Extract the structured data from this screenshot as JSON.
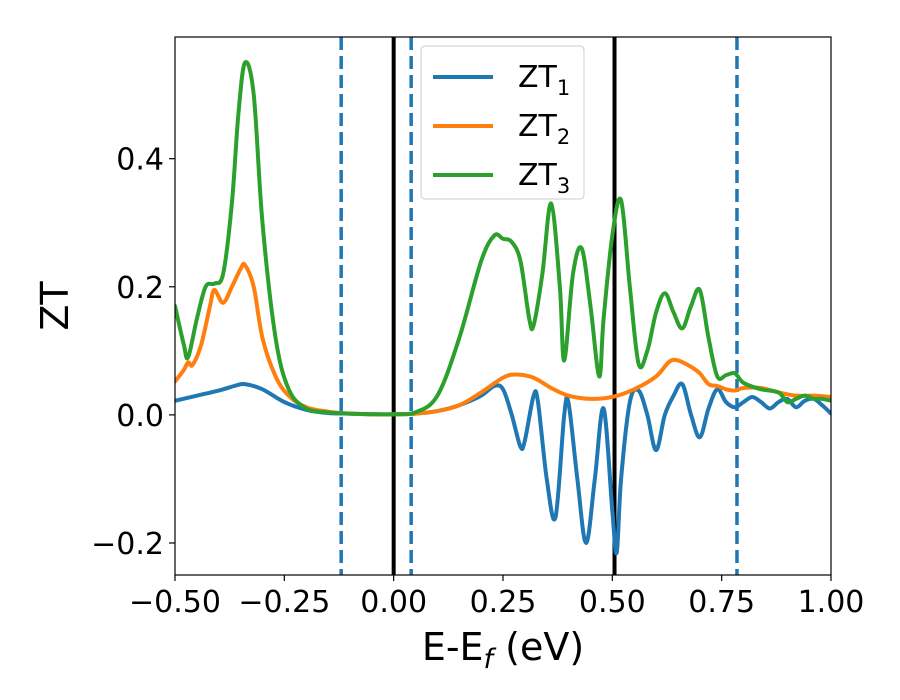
{
  "chart_data": {
    "type": "line",
    "xlabel": "E-E",
    "xlabel_sub": "f",
    "xlabel_unit": " (eV)",
    "ylabel": "ZT",
    "xlim": [
      -0.5,
      1.0
    ],
    "ylim": [
      -0.25,
      0.59
    ],
    "x_ticks": [
      -0.5,
      -0.25,
      0.0,
      0.25,
      0.5,
      0.75,
      1.0
    ],
    "x_tick_labels": [
      "−0.50",
      "−0.25",
      "0.00",
      "0.25",
      "0.50",
      "0.75",
      "1.00"
    ],
    "y_ticks": [
      -0.2,
      0.0,
      0.2,
      0.4
    ],
    "y_tick_labels": [
      "−0.2",
      "0.0",
      "0.2",
      "0.4"
    ],
    "grid": false,
    "legend_position": "top-center",
    "vertical_lines": [
      {
        "x": 0.0,
        "style": "solid",
        "color": "#000000"
      },
      {
        "x": 0.505,
        "style": "solid",
        "color": "#000000"
      },
      {
        "x": -0.12,
        "style": "dashed",
        "color": "#1f77b4"
      },
      {
        "x": 0.04,
        "style": "dashed",
        "color": "#1f77b4"
      },
      {
        "x": 0.785,
        "style": "dashed",
        "color": "#1f77b4"
      }
    ],
    "series": [
      {
        "name": "ZT",
        "name_sub": "1",
        "color": "#1f77b4",
        "x": [
          -0.5,
          -0.45,
          -0.4,
          -0.36,
          -0.34,
          -0.3,
          -0.25,
          -0.2,
          -0.15,
          -0.1,
          -0.05,
          0,
          0.05,
          0.1,
          0.15,
          0.2,
          0.23,
          0.25,
          0.27,
          0.29,
          0.3,
          0.32,
          0.33,
          0.35,
          0.37,
          0.39,
          0.4,
          0.42,
          0.44,
          0.46,
          0.48,
          0.5,
          0.51,
          0.52,
          0.54,
          0.56,
          0.58,
          0.6,
          0.62,
          0.64,
          0.66,
          0.68,
          0.7,
          0.72,
          0.74,
          0.76,
          0.78,
          0.8,
          0.82,
          0.84,
          0.86,
          0.88,
          0.9,
          0.92,
          0.94,
          0.96,
          0.98,
          1.0
        ],
        "values": [
          0.022,
          0.03,
          0.038,
          0.046,
          0.048,
          0.04,
          0.02,
          0.008,
          0.003,
          0.002,
          0.001,
          0.001,
          0.002,
          0.006,
          0.015,
          0.03,
          0.045,
          0.04,
          0.0,
          -0.05,
          -0.04,
          0.03,
          0.02,
          -0.1,
          -0.16,
          0.0,
          0.018,
          -0.1,
          -0.2,
          -0.1,
          0.01,
          -0.15,
          -0.215,
          -0.1,
          0.02,
          0.038,
          0.0,
          -0.055,
          0.0,
          0.03,
          0.048,
          0.0,
          -0.035,
          0.01,
          0.04,
          0.02,
          0.012,
          0.02,
          0.028,
          0.02,
          0.01,
          0.02,
          0.025,
          0.012,
          0.022,
          0.025,
          0.015,
          0.002
        ]
      },
      {
        "name": "ZT",
        "name_sub": "2",
        "color": "#ff7f0e",
        "x": [
          -0.5,
          -0.48,
          -0.47,
          -0.46,
          -0.44,
          -0.42,
          -0.41,
          -0.39,
          -0.37,
          -0.35,
          -0.34,
          -0.32,
          -0.3,
          -0.27,
          -0.24,
          -0.2,
          -0.15,
          -0.1,
          -0.05,
          0,
          0.05,
          0.1,
          0.15,
          0.2,
          0.25,
          0.28,
          0.32,
          0.36,
          0.4,
          0.45,
          0.5,
          0.55,
          0.6,
          0.63,
          0.65,
          0.68,
          0.7,
          0.72,
          0.74,
          0.76,
          0.78,
          0.8,
          0.84,
          0.88,
          0.92,
          0.96,
          1.0
        ],
        "values": [
          0.052,
          0.07,
          0.082,
          0.078,
          0.11,
          0.17,
          0.195,
          0.175,
          0.2,
          0.228,
          0.234,
          0.2,
          0.12,
          0.06,
          0.03,
          0.012,
          0.005,
          0.002,
          0.001,
          0.001,
          0.002,
          0.006,
          0.015,
          0.035,
          0.058,
          0.063,
          0.058,
          0.042,
          0.03,
          0.025,
          0.028,
          0.04,
          0.06,
          0.083,
          0.085,
          0.075,
          0.065,
          0.048,
          0.045,
          0.04,
          0.038,
          0.042,
          0.042,
          0.035,
          0.03,
          0.03,
          0.028
        ]
      },
      {
        "name": "ZT",
        "name_sub": "3",
        "color": "#2ca02c",
        "x": [
          -0.5,
          -0.48,
          -0.47,
          -0.45,
          -0.43,
          -0.41,
          -0.39,
          -0.37,
          -0.355,
          -0.34,
          -0.32,
          -0.3,
          -0.27,
          -0.24,
          -0.2,
          -0.15,
          -0.1,
          -0.05,
          0,
          0.05,
          0.1,
          0.15,
          0.2,
          0.23,
          0.25,
          0.27,
          0.29,
          0.31,
          0.32,
          0.34,
          0.36,
          0.38,
          0.39,
          0.41,
          0.43,
          0.45,
          0.47,
          0.48,
          0.5,
          0.52,
          0.54,
          0.56,
          0.58,
          0.6,
          0.62,
          0.64,
          0.66,
          0.68,
          0.7,
          0.72,
          0.74,
          0.76,
          0.78,
          0.8,
          0.84,
          0.88,
          0.9,
          0.92,
          0.94,
          0.96,
          0.98,
          1.0
        ],
        "values": [
          0.17,
          0.11,
          0.09,
          0.15,
          0.2,
          0.205,
          0.22,
          0.33,
          0.47,
          0.55,
          0.5,
          0.3,
          0.12,
          0.04,
          0.01,
          0.004,
          0.002,
          0.001,
          0.001,
          0.004,
          0.03,
          0.12,
          0.24,
          0.28,
          0.275,
          0.27,
          0.24,
          0.15,
          0.14,
          0.22,
          0.33,
          0.2,
          0.085,
          0.22,
          0.26,
          0.17,
          0.06,
          0.15,
          0.28,
          0.335,
          0.2,
          0.08,
          0.1,
          0.16,
          0.19,
          0.16,
          0.135,
          0.17,
          0.195,
          0.12,
          0.06,
          0.062,
          0.065,
          0.05,
          0.04,
          0.035,
          0.02,
          0.025,
          0.03,
          0.025,
          0.025,
          0.022
        ]
      }
    ]
  }
}
